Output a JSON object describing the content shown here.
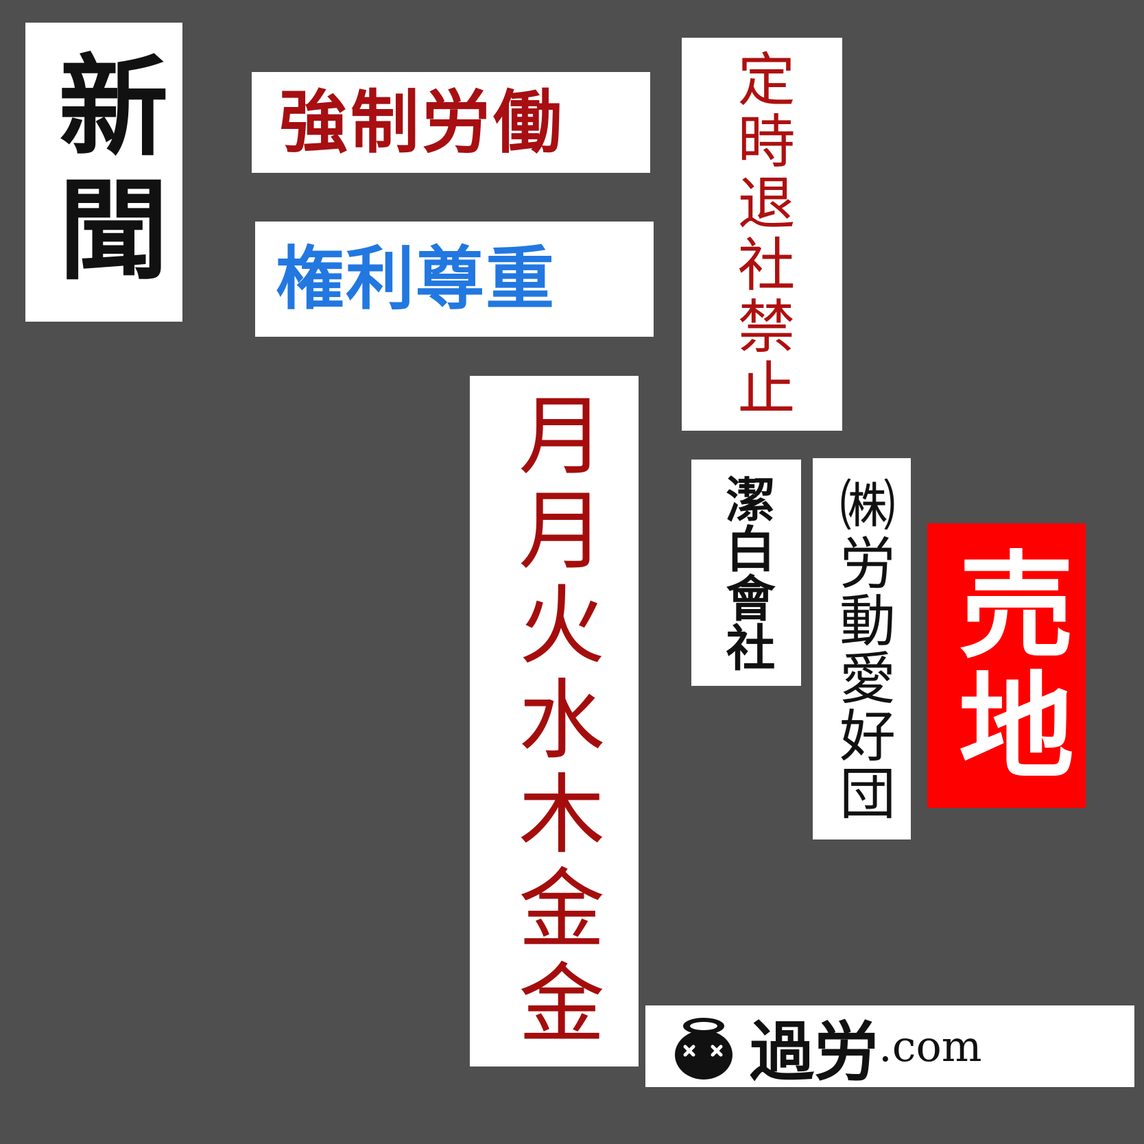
{
  "signs": {
    "shinbun": "新聞",
    "kyousei": "強制労働",
    "kenri": "権利尊重",
    "teiji": "定時退社禁止",
    "getsu": "月月火水木金金",
    "keppaku": "潔白會社",
    "roudou": "㈱労動愛好団",
    "urichi": "売地",
    "karou_brand": "過労",
    "karou_tld": ".com",
    "karou_logo_icon": "dead-face-pot-icon"
  },
  "colors": {
    "background": "#4f4f4f",
    "sign": "#ffffff",
    "dark_red": "#a70f12",
    "blue": "#2278e0",
    "red_sign": "#ff0000",
    "black": "#111111"
  }
}
